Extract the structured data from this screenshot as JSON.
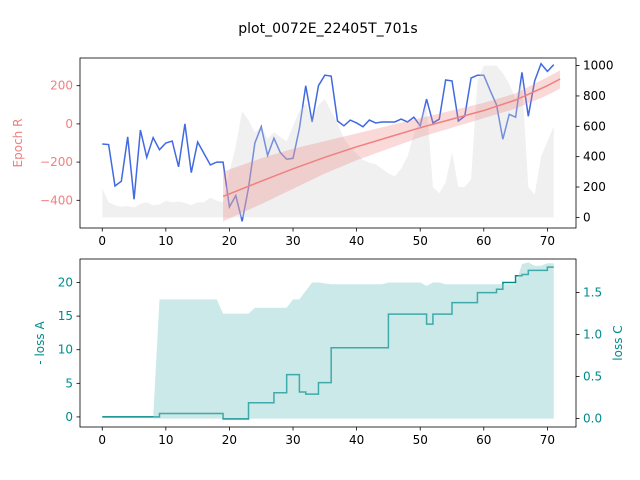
{
  "title": "plot_0072E_22405T_701s",
  "colors": {
    "epoch_r": "#f08080",
    "blue_series": "#4169e1",
    "gray_fill": "#d3d3d3",
    "loss": "#008b8b",
    "loss_fill": "#8fcece"
  },
  "chart_data": [
    {
      "type": "line",
      "panel": "top",
      "ylabel": "Epoch R",
      "ylabel_right": "",
      "xlim": [
        -3.5,
        74.5
      ],
      "ylim": [
        -545,
        345
      ],
      "ylim_right": [
        -70,
        1050
      ],
      "xticks": [
        "0",
        "10",
        "20",
        "30",
        "40",
        "50",
        "60",
        "70"
      ],
      "yticks": [
        "−400",
        "−200",
        "0",
        "200"
      ],
      "yticks_right": [
        "0",
        "200",
        "400",
        "600",
        "800",
        "1000"
      ],
      "grid": false,
      "series": [
        {
          "style": "blue_line",
          "axis": "left",
          "x": [
            0,
            1,
            2,
            3,
            4,
            5,
            6,
            7,
            8,
            9,
            10,
            11,
            12,
            13,
            14,
            15,
            16,
            17,
            18,
            19,
            20,
            21,
            22,
            23,
            24,
            25,
            26,
            27,
            28,
            29,
            30,
            31,
            32,
            33,
            34,
            35,
            36,
            37,
            38,
            39,
            40,
            41,
            42,
            43,
            44,
            45,
            46,
            47,
            48,
            49,
            50,
            51,
            52,
            53,
            54,
            55,
            56,
            57,
            58,
            59,
            60,
            61,
            62,
            63,
            64,
            65,
            66,
            67,
            68,
            69,
            70,
            71
          ],
          "values": [
            -105,
            -108,
            -325,
            -300,
            -68,
            -395,
            -32,
            -175,
            -72,
            -135,
            -100,
            -90,
            -225,
            0,
            -255,
            -95,
            -155,
            -215,
            -200,
            -200,
            -435,
            -375,
            -510,
            -335,
            -100,
            -15,
            -165,
            -75,
            -150,
            -185,
            -180,
            -25,
            200,
            10,
            200,
            255,
            250,
            15,
            -10,
            20,
            5,
            -15,
            20,
            5,
            10,
            10,
            10,
            25,
            10,
            35,
            -10,
            130,
            5,
            25,
            230,
            225,
            15,
            40,
            240,
            255,
            255,
            175,
            100,
            -80,
            50,
            35,
            270,
            40,
            225,
            315,
            275,
            310
          ]
        },
        {
          "style": "gray_area",
          "axis": "right",
          "x": [
            0,
            1,
            2,
            3,
            4,
            5,
            6,
            7,
            8,
            9,
            10,
            11,
            12,
            13,
            14,
            15,
            16,
            17,
            18,
            19,
            20,
            21,
            22,
            23,
            24,
            25,
            26,
            27,
            28,
            29,
            30,
            31,
            32,
            33,
            34,
            35,
            36,
            37,
            38,
            39,
            40,
            41,
            42,
            43,
            44,
            45,
            46,
            47,
            48,
            49,
            50,
            51,
            52,
            53,
            54,
            55,
            56,
            57,
            58,
            59,
            60,
            61,
            62,
            63,
            64,
            65,
            66,
            67,
            68,
            69,
            70,
            71
          ],
          "values": [
            190,
            100,
            80,
            70,
            75,
            65,
            90,
            100,
            80,
            85,
            110,
            100,
            105,
            95,
            80,
            100,
            100,
            130,
            110,
            100,
            300,
            470,
            700,
            640,
            560,
            600,
            520,
            560,
            530,
            500,
            600,
            700,
            750,
            640,
            740,
            780,
            700,
            620,
            520,
            460,
            420,
            380,
            360,
            350,
            320,
            290,
            270,
            320,
            400,
            550,
            650,
            750,
            200,
            160,
            230,
            430,
            200,
            200,
            250,
            900,
            1000,
            1000,
            1000,
            950,
            880,
            780,
            900,
            200,
            150,
            400,
            500,
            600
          ]
        },
        {
          "style": "trend_band",
          "axis": "left",
          "name": "",
          "x": [
            19,
            25,
            30,
            35,
            40,
            45,
            50,
            55,
            60,
            65,
            70,
            72
          ],
          "center": [
            -380,
            -300,
            -235,
            -175,
            -120,
            -70,
            -20,
            25,
            70,
            125,
            200,
            235
          ],
          "lower": [
            -510,
            -420,
            -340,
            -260,
            -190,
            -130,
            -70,
            -20,
            30,
            80,
            150,
            185
          ],
          "upper": [
            -250,
            -180,
            -130,
            -90,
            -50,
            -10,
            30,
            70,
            110,
            160,
            245,
            280
          ]
        }
      ]
    },
    {
      "type": "line",
      "panel": "bottom",
      "ylabel": "- loss A",
      "ylabel_right": "loss C",
      "xlim": [
        -3.5,
        74.5
      ],
      "ylim": [
        -1.5,
        23.5
      ],
      "ylim_right": [
        -0.1,
        1.9
      ],
      "xticks": [
        "0",
        "10",
        "20",
        "30",
        "40",
        "50",
        "60",
        "70"
      ],
      "yticks": [
        "0",
        "5",
        "10",
        "15",
        "20"
      ],
      "yticks_right": [
        "0.0",
        "0.5",
        "1.0",
        "1.5"
      ],
      "grid": false,
      "series": [
        {
          "style": "step_line",
          "axis": "left",
          "x": [
            0,
            1,
            2,
            3,
            4,
            5,
            6,
            7,
            8,
            9,
            10,
            11,
            12,
            13,
            14,
            15,
            16,
            17,
            18,
            19,
            20,
            21,
            22,
            23,
            24,
            25,
            26,
            27,
            28,
            29,
            30,
            31,
            32,
            33,
            34,
            35,
            36,
            37,
            38,
            39,
            40,
            41,
            42,
            43,
            44,
            45,
            46,
            47,
            48,
            49,
            50,
            51,
            52,
            53,
            54,
            55,
            56,
            57,
            58,
            59,
            60,
            61,
            62,
            63,
            64,
            65,
            66,
            67,
            68,
            69,
            70,
            71
          ],
          "values": [
            0,
            0,
            0,
            0,
            0,
            0,
            0,
            0,
            0,
            0.5,
            0.5,
            0.5,
            0.5,
            0.5,
            0.5,
            0.5,
            0.5,
            0.5,
            0.5,
            -0.3,
            -0.3,
            -0.3,
            -0.3,
            2.1,
            2.1,
            2.1,
            2.1,
            3.6,
            3.6,
            6.3,
            6.3,
            3.7,
            3.4,
            3.4,
            5.1,
            5.1,
            10.3,
            10.3,
            10.3,
            10.3,
            10.3,
            10.3,
            10.3,
            10.3,
            10.3,
            15.3,
            15.3,
            15.3,
            15.3,
            15.3,
            15.3,
            13.8,
            15.3,
            15.3,
            15.3,
            17,
            17,
            17,
            17,
            18.5,
            18.5,
            18.5,
            19,
            20,
            20,
            21,
            21.2,
            21.8,
            21.8,
            21.8,
            22.3,
            22.3
          ]
        },
        {
          "style": "teal_area",
          "axis": "right",
          "x": [
            0,
            1,
            2,
            3,
            4,
            5,
            6,
            7,
            8,
            9,
            10,
            11,
            12,
            13,
            14,
            15,
            16,
            17,
            18,
            19,
            20,
            21,
            22,
            23,
            24,
            25,
            26,
            27,
            28,
            29,
            30,
            31,
            32,
            33,
            34,
            35,
            36,
            37,
            38,
            39,
            40,
            41,
            42,
            43,
            44,
            45,
            46,
            47,
            48,
            49,
            50,
            51,
            52,
            53,
            54,
            55,
            56,
            57,
            58,
            59,
            60,
            61,
            62,
            63,
            64,
            65,
            66,
            67,
            68,
            69,
            70,
            71
          ],
          "values": [
            0,
            0,
            0,
            0,
            0,
            0,
            0,
            0,
            0,
            1.42,
            1.42,
            1.42,
            1.42,
            1.42,
            1.42,
            1.42,
            1.42,
            1.42,
            1.42,
            1.25,
            1.25,
            1.25,
            1.25,
            1.25,
            1.32,
            1.32,
            1.32,
            1.32,
            1.32,
            1.32,
            1.42,
            1.42,
            1.52,
            1.62,
            1.62,
            1.61,
            1.6,
            1.6,
            1.6,
            1.6,
            1.6,
            1.6,
            1.6,
            1.6,
            1.6,
            1.62,
            1.62,
            1.62,
            1.62,
            1.62,
            1.62,
            1.58,
            1.62,
            1.62,
            1.6,
            1.6,
            1.6,
            1.6,
            1.6,
            1.6,
            1.6,
            1.6,
            1.6,
            1.6,
            1.6,
            1.6,
            1.84,
            1.86,
            1.82,
            1.82,
            1.85,
            1.85
          ]
        }
      ]
    }
  ]
}
